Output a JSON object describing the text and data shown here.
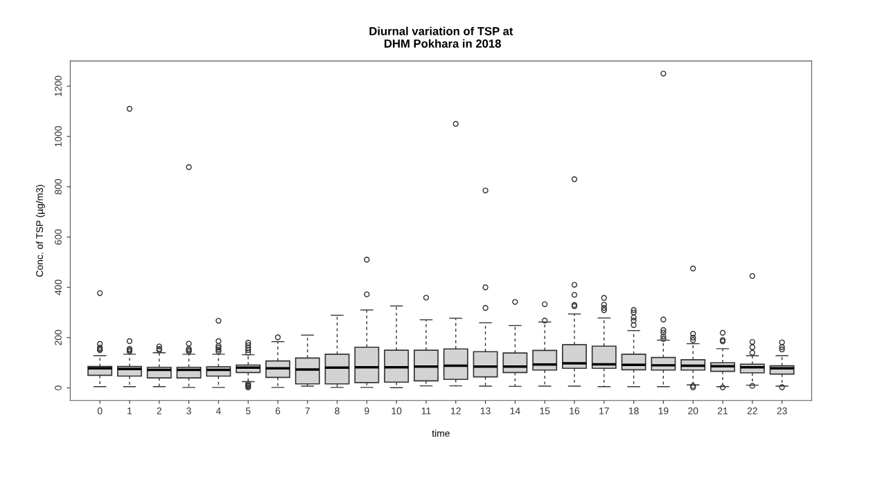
{
  "chart_data": {
    "type": "box",
    "title": "Diurnal variation of TSP at\n DHM Pokhara in 2018",
    "xlabel": "time",
    "ylabel": "Conc. of TSP (µg/m3)",
    "categories": [
      "0",
      "1",
      "2",
      "3",
      "4",
      "5",
      "6",
      "7",
      "8",
      "9",
      "10",
      "11",
      "12",
      "13",
      "14",
      "15",
      "16",
      "17",
      "18",
      "19",
      "20",
      "21",
      "22",
      "23"
    ],
    "color": "#d3d3d3",
    "ylim": [
      -50,
      1300
    ],
    "yticks": [
      0,
      200,
      400,
      600,
      800,
      1000,
      1200
    ],
    "grid": false,
    "boxes": [
      {
        "low": 5,
        "q1": 50,
        "median": 78,
        "q3": 85,
        "high": 128,
        "outliers": [
          150,
          155,
          160,
          175,
          377
        ]
      },
      {
        "low": 5,
        "q1": 47,
        "median": 75,
        "q3": 85,
        "high": 134,
        "outliers": [
          145,
          150,
          155,
          186,
          1110
        ]
      },
      {
        "low": 5,
        "q1": 40,
        "median": 72,
        "q3": 82,
        "high": 140,
        "outliers": [
          150,
          155,
          165
        ]
      },
      {
        "low": 2,
        "q1": 40,
        "median": 72,
        "q3": 82,
        "high": 134,
        "outliers": [
          145,
          150,
          155,
          176,
          878
        ]
      },
      {
        "low": 2,
        "q1": 47,
        "median": 72,
        "q3": 84,
        "high": 134,
        "outliers": [
          145,
          152,
          160,
          167,
          186,
          267
        ]
      },
      {
        "low": 25,
        "q1": 61,
        "median": 81,
        "q3": 91,
        "high": 132,
        "outliers": [
          2,
          7,
          11,
          16,
          140,
          150,
          160,
          170,
          180
        ]
      },
      {
        "low": 2,
        "q1": 42,
        "median": 78,
        "q3": 107,
        "high": 184,
        "outliers": [
          201
        ]
      },
      {
        "low": 7,
        "q1": 16,
        "median": 73,
        "q3": 119,
        "high": 210
      },
      {
        "low": 2,
        "q1": 16,
        "median": 81,
        "q3": 134,
        "high": 289
      },
      {
        "low": 2,
        "q1": 21,
        "median": 82,
        "q3": 162,
        "high": 310,
        "outliers": [
          372,
          510
        ]
      },
      {
        "low": 1,
        "q1": 23,
        "median": 82,
        "q3": 150,
        "high": 326
      },
      {
        "low": 8,
        "q1": 28,
        "median": 85,
        "q3": 150,
        "high": 271,
        "outliers": [
          359
        ]
      },
      {
        "low": 8,
        "q1": 34,
        "median": 88,
        "q3": 155,
        "high": 277,
        "outliers": [
          1050
        ]
      },
      {
        "low": 7,
        "q1": 44,
        "median": 85,
        "q3": 144,
        "high": 259,
        "outliers": [
          318,
          400,
          785
        ]
      },
      {
        "low": 6,
        "q1": 61,
        "median": 85,
        "q3": 139,
        "high": 248,
        "outliers": [
          342
        ]
      },
      {
        "low": 7,
        "q1": 71,
        "median": 93,
        "q3": 149,
        "high": 262,
        "outliers": [
          268,
          333
        ]
      },
      {
        "low": 7,
        "q1": 78,
        "median": 98,
        "q3": 172,
        "high": 294,
        "outliers": [
          325,
          330,
          370,
          410,
          830
        ]
      },
      {
        "low": 5,
        "q1": 78,
        "median": 94,
        "q3": 166,
        "high": 278,
        "outliers": [
          309,
          318,
          331,
          358
        ]
      },
      {
        "low": 5,
        "q1": 72,
        "median": 92,
        "q3": 134,
        "high": 228,
        "outliers": [
          250,
          268,
          280,
          300,
          310
        ]
      },
      {
        "low": 5,
        "q1": 71,
        "median": 90,
        "q3": 121,
        "high": 190,
        "outliers": [
          195,
          205,
          220,
          230,
          272,
          1250
        ]
      },
      {
        "low": 12,
        "q1": 71,
        "median": 88,
        "q3": 112,
        "high": 176,
        "outliers": [
          2,
          8,
          190,
          200,
          215,
          475
        ]
      },
      {
        "low": 5,
        "q1": 66,
        "median": 86,
        "q3": 100,
        "high": 156,
        "outliers": [
          2,
          185,
          190,
          219
        ]
      },
      {
        "low": 11,
        "q1": 60,
        "median": 82,
        "q3": 94,
        "high": 128,
        "outliers": [
          8,
          140,
          162,
          183,
          445
        ]
      },
      {
        "low": 7,
        "q1": 55,
        "median": 78,
        "q3": 88,
        "high": 128,
        "outliers": [
          3,
          153,
          162,
          181
        ]
      }
    ]
  }
}
